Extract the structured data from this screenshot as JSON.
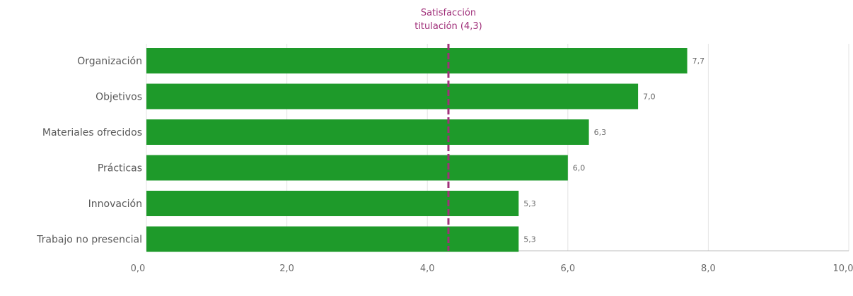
{
  "chart_data": {
    "type": "bar",
    "orientation": "horizontal",
    "categories": [
      "Organización",
      "Objetivos",
      "Materiales ofrecidos",
      "Prácticas",
      "Innovación",
      "Trabajo no presencial"
    ],
    "values": [
      7.7,
      7.0,
      6.3,
      6.0,
      5.3,
      5.3
    ],
    "value_labels": [
      "7,7",
      "7,0",
      "6,3",
      "6,0",
      "5,3",
      "5,3"
    ],
    "xlim": [
      0,
      10
    ],
    "x_ticks": [
      0,
      2,
      4,
      6,
      8,
      10
    ],
    "x_tick_labels": [
      "0,0",
      "2,0",
      "4,0",
      "6,0",
      "8,0",
      "10,0"
    ],
    "grid": "vertical",
    "bar_color": "#1e9a2a",
    "reference_line": {
      "value": 4.3,
      "label_lines": [
        "Satisfacción",
        "titulación (4,3)"
      ],
      "color": "#a0307a",
      "style": "dashed"
    }
  }
}
